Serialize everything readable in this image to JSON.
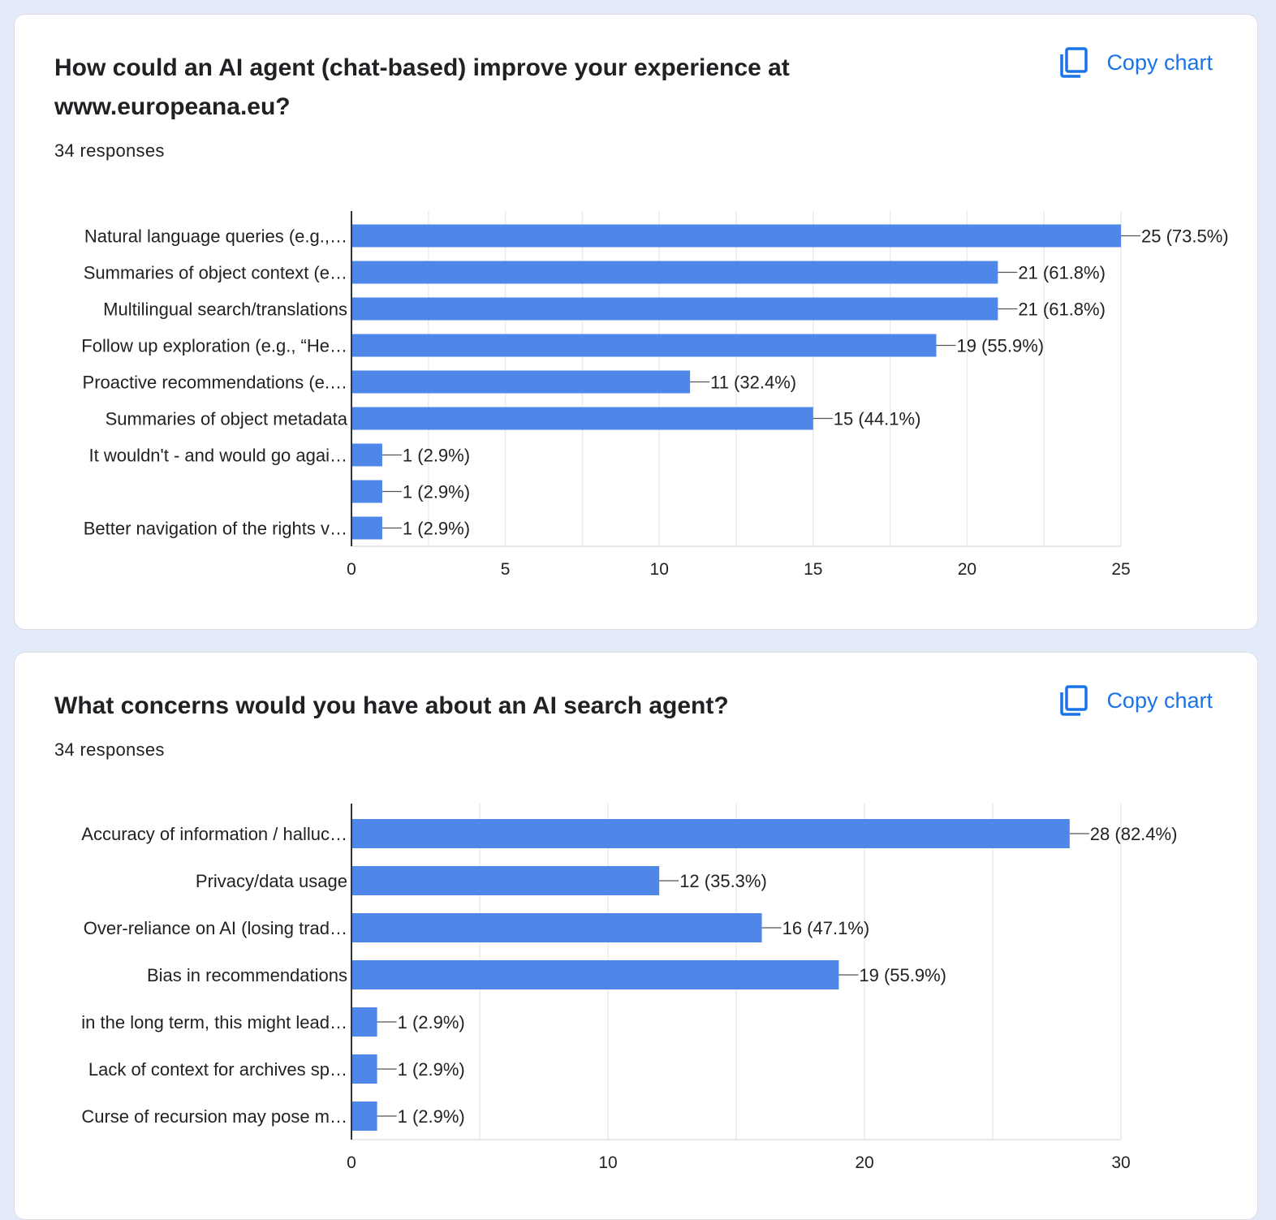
{
  "accent_color": "#4f87e8",
  "copy_icon": "copy-icon",
  "cards": [
    {
      "title": "How could an AI agent (chat-based) improve your experience at www.europeana.eu?",
      "responses": "34 responses",
      "copy_label": "Copy chart"
    },
    {
      "title": "What concerns would you have about an AI search agent?",
      "responses": "34 responses",
      "copy_label": "Copy chart"
    }
  ],
  "chart_data": [
    {
      "type": "bar",
      "orientation": "horizontal",
      "categories": [
        "Natural language queries (e.g.,…",
        "Summaries of object context (e…",
        "Multilingual search/translations",
        "Follow up exploration (e.g., “He…",
        "Proactive recommendations (e.…",
        "Summaries of object metadata",
        "It wouldn't - and would go agai…",
        "",
        "Better navigation of the rights v…"
      ],
      "values": [
        25,
        21,
        21,
        19,
        11,
        15,
        1,
        1,
        1
      ],
      "data_labels": [
        "25 (73.5%)",
        "21 (61.8%)",
        "21 (61.8%)",
        "19 (55.9%)",
        "11 (32.4%)",
        "15 (44.1%)",
        "1 (2.9%)",
        "1 (2.9%)",
        "1 (2.9%)"
      ],
      "xlim": [
        0,
        25
      ],
      "xticks": [
        0,
        5,
        10,
        15,
        20,
        25
      ],
      "grid": true,
      "color": "#4f87e8"
    },
    {
      "type": "bar",
      "orientation": "horizontal",
      "categories": [
        "Accuracy of information / halluc…",
        "Privacy/data usage",
        "Over-reliance on AI (losing trad…",
        "Bias in recommendations",
        "in the long term, this might lead…",
        "Lack of context for archives sp…",
        "Curse of recursion may pose m…"
      ],
      "values": [
        28,
        12,
        16,
        19,
        1,
        1,
        1
      ],
      "data_labels": [
        "28 (82.4%)",
        "12 (35.3%)",
        "16 (47.1%)",
        "19 (55.9%)",
        "1 (2.9%)",
        "1 (2.9%)",
        "1 (2.9%)"
      ],
      "xlim": [
        0,
        30
      ],
      "xticks": [
        0,
        10,
        20,
        30
      ],
      "grid": true,
      "color": "#4f87e8"
    }
  ]
}
